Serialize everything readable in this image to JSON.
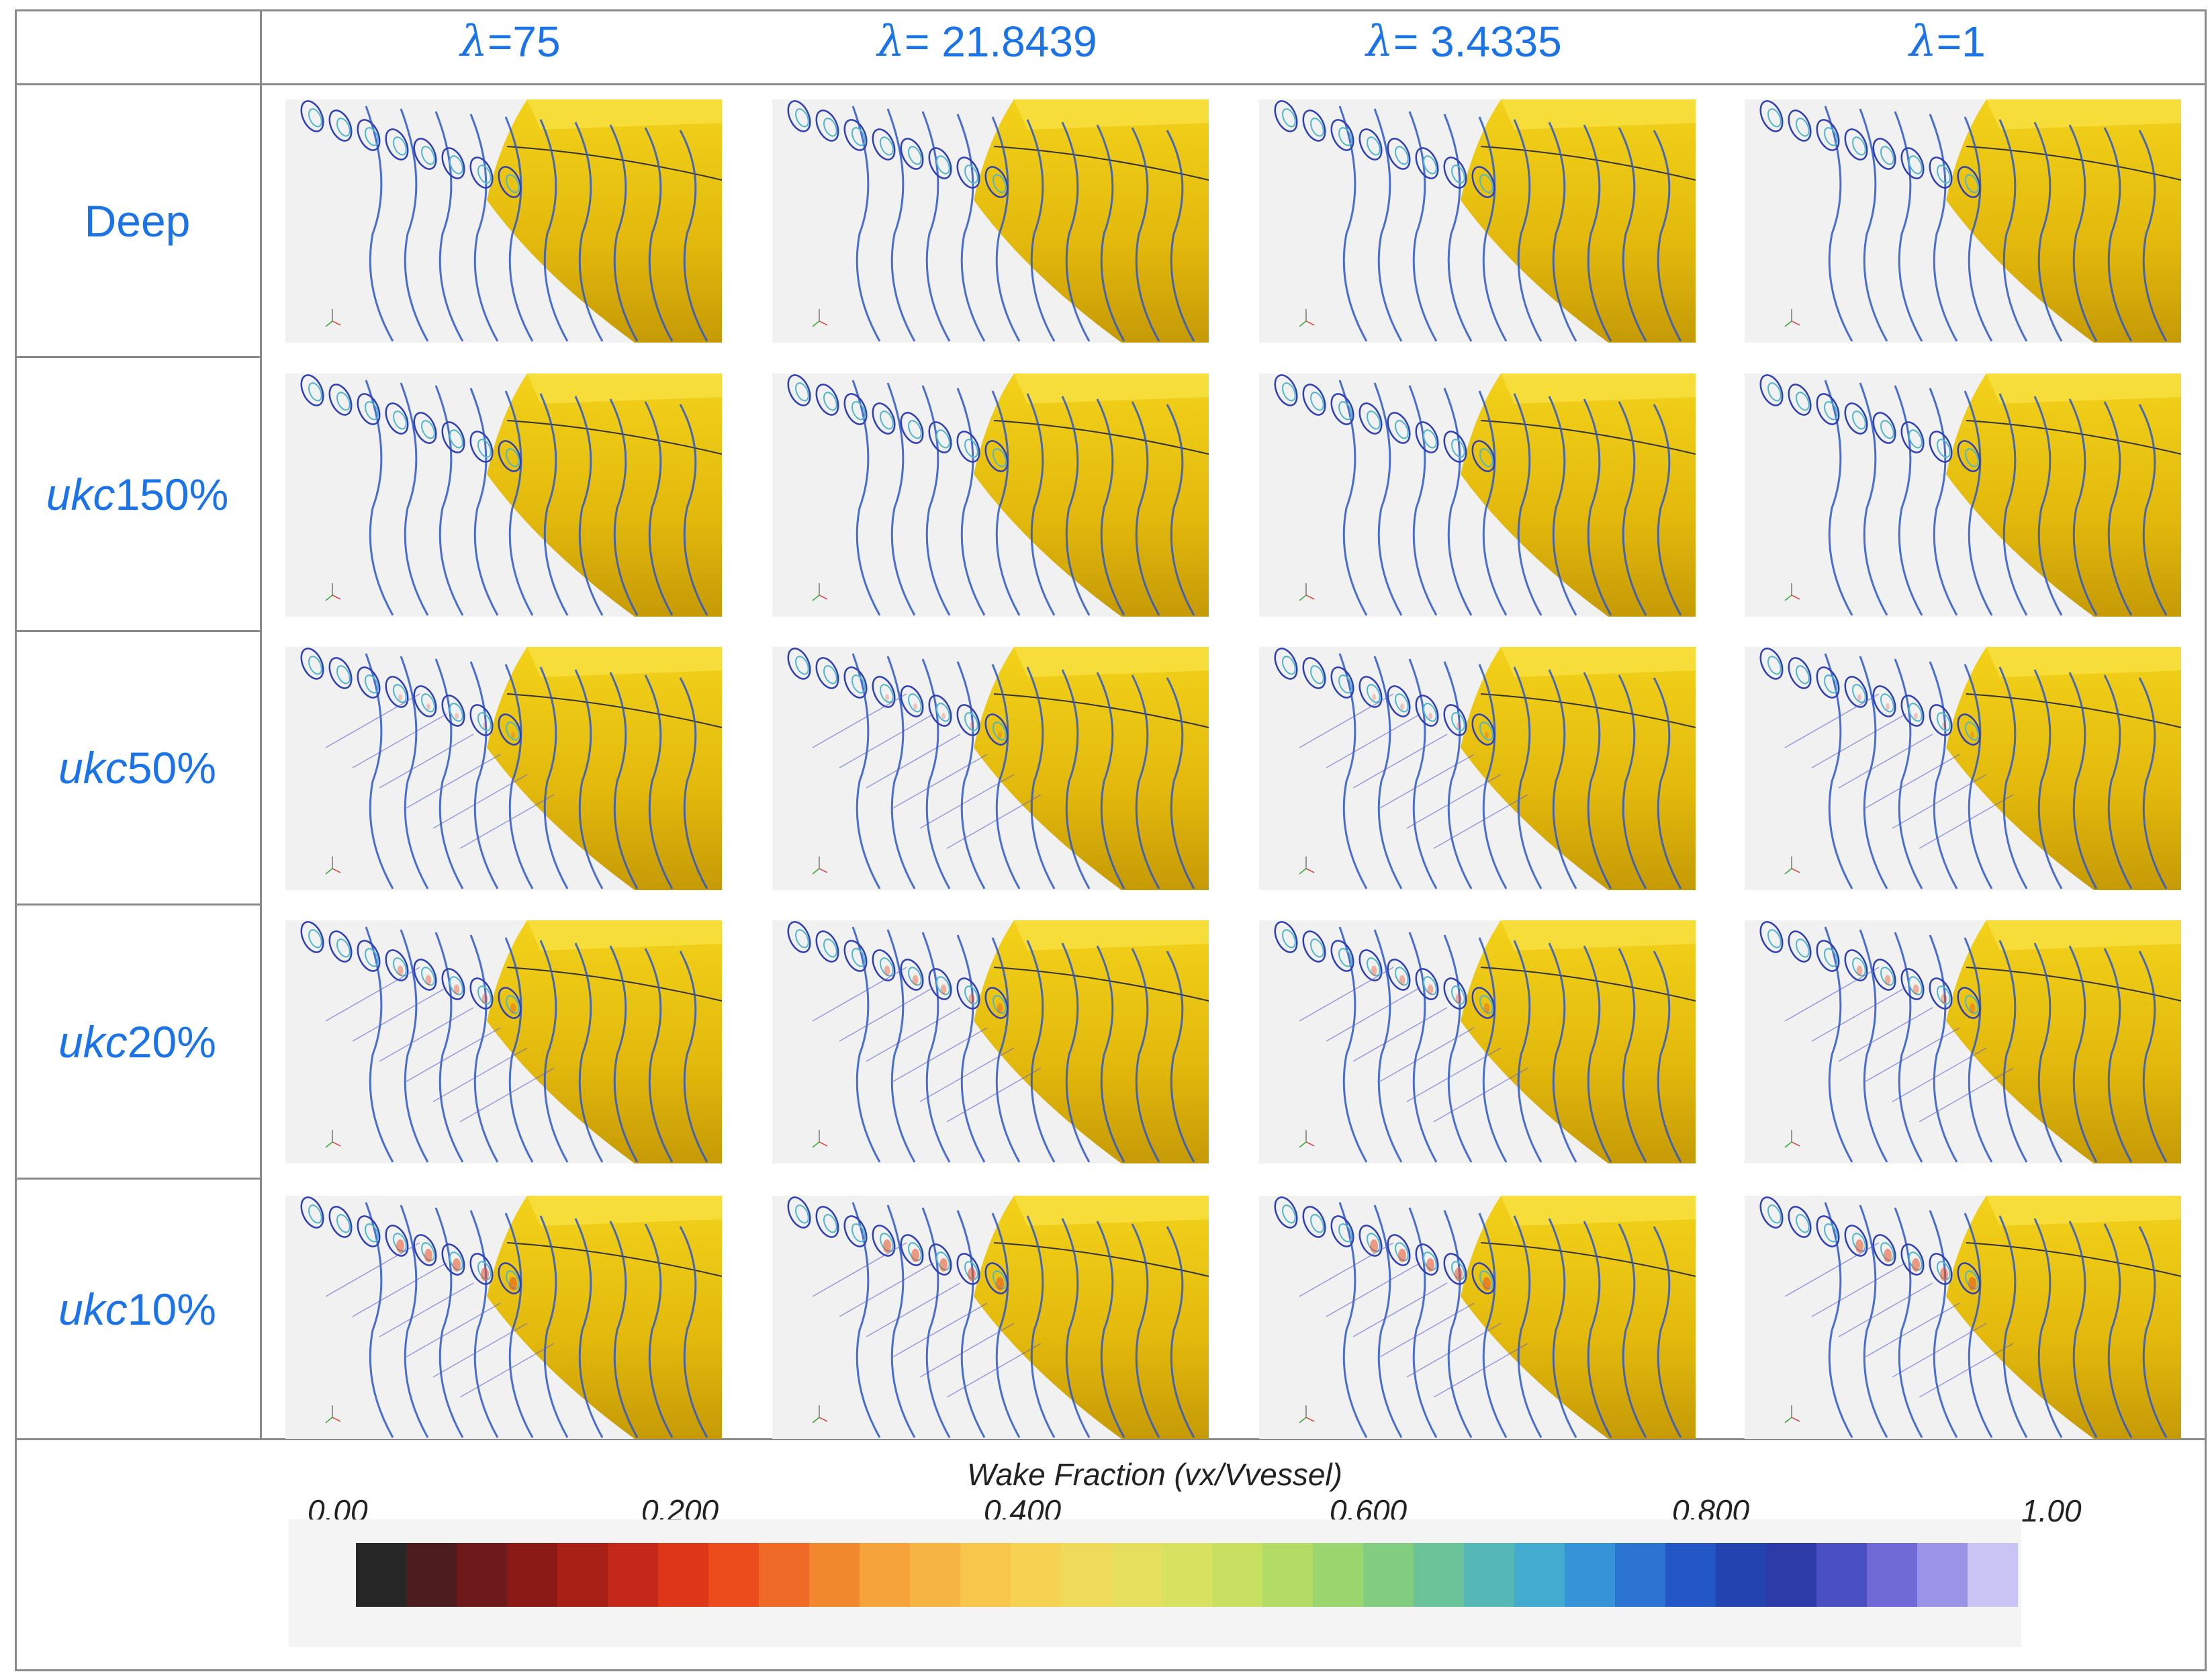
{
  "column_headers": [
    {
      "symbol": "λ",
      "value": "=75"
    },
    {
      "symbol": "λ",
      "value": " = 21.8439"
    },
    {
      "symbol": "λ",
      "value": " = 3.4335"
    },
    {
      "symbol": "λ",
      "value": "=1"
    }
  ],
  "row_headers": [
    {
      "italic": "",
      "suffix": "Deep"
    },
    {
      "italic": "ukc",
      "suffix": "150%"
    },
    {
      "italic": "ukc",
      "suffix": "50%"
    },
    {
      "italic": "ukc",
      "suffix": "20%"
    },
    {
      "italic": "ukc",
      "suffix": "10%"
    }
  ],
  "image_description": "Wake fraction contour plots on a yellow ship hull for each clearance case and lambda value",
  "colorbar": {
    "title": "Wake Fraction (vx/Vvessel)",
    "ticks": [
      "0.00",
      "0.200",
      "0.400",
      "0.600",
      "0.800",
      "1.00"
    ],
    "colors": [
      "#262626",
      "#4d1c1c",
      "#6e1a1a",
      "#8b1a17",
      "#a81f16",
      "#c4281a",
      "#dd3618",
      "#ec4b1c",
      "#ef6a26",
      "#f2882e",
      "#f5a33a",
      "#f6b542",
      "#f7c64a",
      "#f5d252",
      "#f0da5a",
      "#e6df5e",
      "#d9e260",
      "#c7e061",
      "#b2dc66",
      "#9bd56d",
      "#82cd7f",
      "#6bc39a",
      "#55b8b6",
      "#43aad0",
      "#3693d8",
      "#2b74d2",
      "#2357c6",
      "#2243b0",
      "#2d3ba8",
      "#4a4fc2",
      "#6f6ad6",
      "#9b94e6",
      "#c8c4f4"
    ]
  }
}
